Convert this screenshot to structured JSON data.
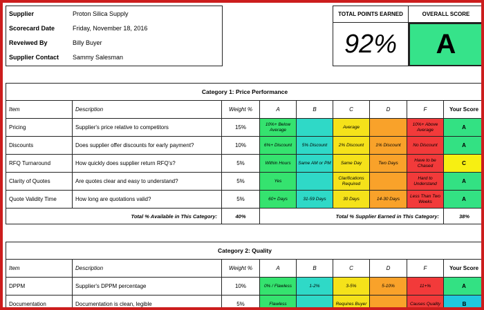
{
  "header": {
    "rows": [
      {
        "key": "Supplier",
        "value": "Proton Silica Supply"
      },
      {
        "key": "Scorecard Date",
        "value": "Friday, November 18, 2016"
      },
      {
        "key": "Reveiwed By",
        "value": "Billy Buyer"
      },
      {
        "key": "Supplier Contact",
        "value": "Sammy Salesman"
      }
    ],
    "total_points_label": "TOTAL POINTS EARNED",
    "total_points_value": "92%",
    "overall_score_label": "OVERALL SCORE",
    "overall_score_value": "A"
  },
  "columns": [
    "Item",
    "Description",
    "Weight %",
    "A",
    "B",
    "C",
    "D",
    "F",
    "Your Score"
  ],
  "categories": [
    {
      "title": "Category 1: Price Performance",
      "rows": [
        {
          "item": "Pricing",
          "description": "Supplier's price relative to competitors",
          "weight": "15%",
          "a": "10%+ Below Average",
          "b": "",
          "c": "Average",
          "d": "",
          "f": "10%+ Above Average",
          "score": "A"
        },
        {
          "item": "Discounts",
          "description": "Does supplier offer discounts for early payment?",
          "weight": "10%",
          "a": "6%+ Discount",
          "b": "5% Discount",
          "c": "2% Discount",
          "d": "1% Discount",
          "f": "No Discount",
          "score": "A"
        },
        {
          "item": "RFQ Turnaround",
          "description": "How quickly does supplier return RFQ's?",
          "weight": "5%",
          "a": "Within Hours",
          "b": "Same AM or PM",
          "c": "Same Day",
          "d": "Two Days",
          "f": "Have to be Chased",
          "score": "C"
        },
        {
          "item": "Clarity of Quotes",
          "description": "Are quotes clear and easy to understand?",
          "weight": "5%",
          "a": "Yes",
          "b": "",
          "c": "Clarifications Required",
          "d": "",
          "f": "Hard to Understand",
          "score": "A"
        },
        {
          "item": "Quote Validity Time",
          "description": "How long are quotations valid?",
          "weight": "5%",
          "a": "60+ Days",
          "b": "31-59 Days",
          "c": "30 Days",
          "d": "14-30 Days",
          "f": "Less Than Two Weeks",
          "score": "A"
        }
      ],
      "total_available_label": "Total % Available in This Category:",
      "total_available_value": "40%",
      "total_earned_label": "Total % Supplier Earned in This Category:",
      "total_earned_value": "38%"
    },
    {
      "title": "Category 2: Quality",
      "rows": [
        {
          "item": "DPPM",
          "description": "Supplier's DPPM percentage",
          "weight": "10%",
          "a": "0% / Flawless",
          "b": "1-2%",
          "c": "3-5%",
          "d": "5-10%",
          "f": "11+%",
          "score": "A"
        },
        {
          "item": "Documentation",
          "description": "Documentation is clean, legible",
          "weight": "5%",
          "a": "Flawless",
          "b": "",
          "c": "Requires Buyer",
          "d": "",
          "f": "Causes Quality",
          "score": "B"
        }
      ]
    }
  ],
  "colors": {
    "frame": "#cc1d1d",
    "grade_a": "#35e36f",
    "grade_b": "#2fd9c7",
    "grade_c": "#f5e21a",
    "grade_d": "#f9a22a",
    "grade_f": "#f23a3a"
  }
}
